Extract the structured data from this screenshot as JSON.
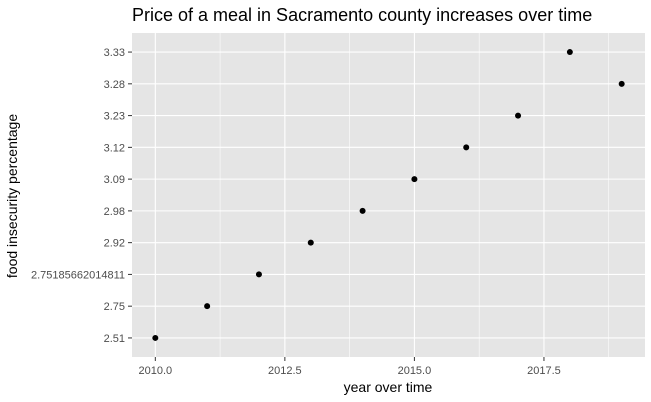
{
  "chart_data": {
    "type": "scatter",
    "title": "Price of a meal in Sacramento county increases over time",
    "xlabel": "year over time",
    "ylabel": "food insecurity percentage",
    "x_axis": {
      "scale": "continuous",
      "range": [
        2009.55,
        2019.45
      ],
      "ticks": [
        "2010.0",
        "2012.5",
        "2015.0",
        "2017.5"
      ]
    },
    "y_axis": {
      "scale": "discrete",
      "categories": [
        "2.51",
        "2.75",
        "2.75185662014811",
        "2.92",
        "2.98",
        "3.09",
        "3.12",
        "3.23",
        "3.28",
        "3.33"
      ]
    },
    "points": [
      {
        "x": 2010,
        "y": "2.51"
      },
      {
        "x": 2011,
        "y": "2.75"
      },
      {
        "x": 2012,
        "y": "2.75185662014811"
      },
      {
        "x": 2013,
        "y": "2.92"
      },
      {
        "x": 2014,
        "y": "2.98"
      },
      {
        "x": 2015,
        "y": "3.09"
      },
      {
        "x": 2016,
        "y": "3.12"
      },
      {
        "x": 2017,
        "y": "3.23"
      },
      {
        "x": 2018,
        "y": "3.33"
      },
      {
        "x": 2019,
        "y": "3.28"
      }
    ],
    "grid": true,
    "legend": "none",
    "colors": {
      "panel_background": "#e5e5e5",
      "grid_line": "#ffffff",
      "point": "#000000",
      "tick_mark": "#333333"
    }
  }
}
